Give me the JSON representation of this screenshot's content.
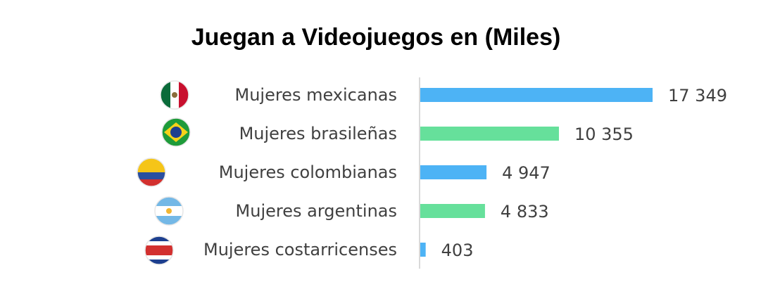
{
  "chart_data": {
    "type": "bar",
    "orientation": "horizontal",
    "title": "Juegan a Videojuegos en (Miles)",
    "categories": [
      "Mujeres mexicanas",
      "Mujeres brasileñas",
      "Mujeres colombianas",
      "Mujeres argentinas",
      "Mujeres costarricenses"
    ],
    "values": [
      17349,
      10355,
      4947,
      4833,
      403
    ],
    "value_labels": [
      "17 349",
      "10 355",
      "4 947",
      "4 833",
      "403"
    ],
    "bar_colors": [
      "#4db3f5",
      "#66e09b",
      "#4db3f5",
      "#66e09b",
      "#4db3f5"
    ],
    "flags": [
      "mexico-flag-icon",
      "brazil-flag-icon",
      "colombia-flag-icon",
      "argentina-flag-icon",
      "costa-rica-flag-icon"
    ],
    "xlim": [
      0,
      17349
    ],
    "grid": false,
    "legend": "none"
  }
}
